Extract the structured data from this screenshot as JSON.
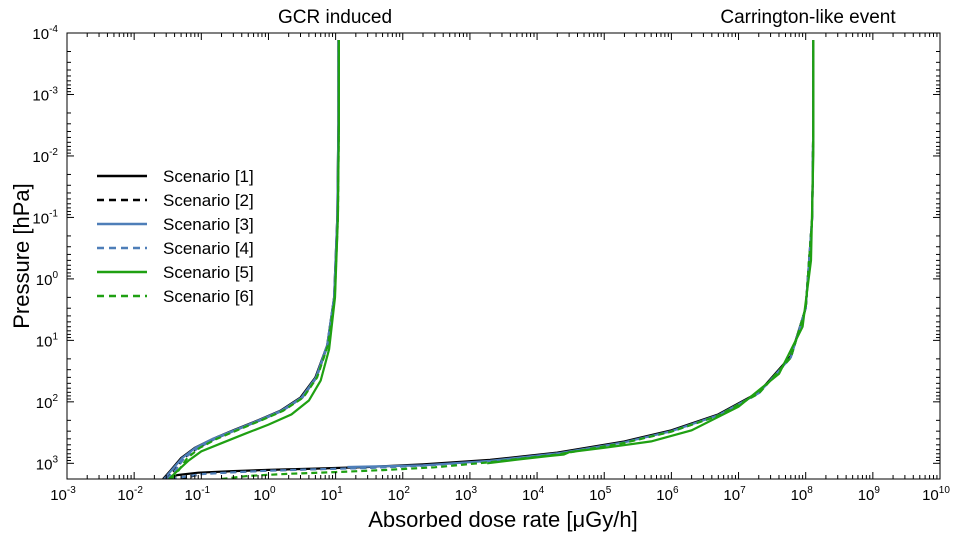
{
  "chart_data": {
    "type": "line",
    "title": "",
    "annotations": [
      "GCR induced",
      "Carrington-like event"
    ],
    "xlabel": "Absorbed dose rate [μGy/h]",
    "ylabel": "Pressure [hPa]",
    "xscale": "log",
    "yscale": "log",
    "yaxis_inverted": true,
    "xlim": [
      0.001,
      10000000000
    ],
    "ylim": [
      1800,
      0.0001
    ],
    "x_ticks": [
      {
        "base": "10",
        "exp": "-3"
      },
      {
        "base": "10",
        "exp": "-2"
      },
      {
        "base": "10",
        "exp": "-1"
      },
      {
        "base": "10",
        "exp": "0"
      },
      {
        "base": "10",
        "exp": "1"
      },
      {
        "base": "10",
        "exp": "2"
      },
      {
        "base": "10",
        "exp": "3"
      },
      {
        "base": "10",
        "exp": "4"
      },
      {
        "base": "10",
        "exp": "5"
      },
      {
        "base": "10",
        "exp": "6"
      },
      {
        "base": "10",
        "exp": "7"
      },
      {
        "base": "10",
        "exp": "8"
      },
      {
        "base": "10",
        "exp": "9"
      },
      {
        "base": "10",
        "exp": "10"
      }
    ],
    "y_ticks": [
      {
        "base": "10",
        "exp": "-4"
      },
      {
        "base": "10",
        "exp": "-3"
      },
      {
        "base": "10",
        "exp": "-2"
      },
      {
        "base": "10",
        "exp": "-1"
      },
      {
        "base": "10",
        "exp": "0"
      },
      {
        "base": "10",
        "exp": "1"
      },
      {
        "base": "10",
        "exp": "2"
      },
      {
        "base": "10",
        "exp": "3"
      }
    ],
    "legend_position": "center-left",
    "grid": false,
    "series": [
      {
        "name": "Scenario [1]",
        "color": "#000000",
        "dash": "solid",
        "curves": [
          [
            [
              0.027,
              1800
            ],
            [
              0.035,
              1300
            ],
            [
              0.05,
              820
            ],
            [
              0.08,
              560
            ],
            [
              0.15,
              400
            ],
            [
              0.3,
              290
            ],
            [
              0.7,
              200
            ],
            [
              1.5,
              140
            ],
            [
              3,
              85
            ],
            [
              5,
              40
            ],
            [
              7.5,
              12
            ],
            [
              9.5,
              2
            ],
            [
              10.6,
              0.1
            ],
            [
              11,
              0.003
            ],
            [
              11,
              0.00013
            ]
          ],
          [
            [
              0.027,
              1800
            ],
            [
              0.045,
              1550
            ],
            [
              0.09,
              1420
            ],
            [
              0.3,
              1340
            ],
            [
              1,
              1280
            ],
            [
              5,
              1220
            ],
            [
              30,
              1150
            ],
            [
              200,
              1040
            ],
            [
              2000,
              880
            ],
            [
              20000,
              670
            ],
            [
              200000,
              440
            ],
            [
              1000000,
              290
            ],
            [
              5000000,
              160
            ],
            [
              20000000,
              70
            ],
            [
              60000000,
              18
            ],
            [
              100000000,
              3
            ],
            [
              125000000,
              0.1
            ],
            [
              130000000,
              0.003
            ],
            [
              130000000,
              0.00013
            ]
          ]
        ]
      },
      {
        "name": "Scenario [2]",
        "color": "#000000",
        "dash": "dashed",
        "curves": [
          [
            [
              0.03,
              1800
            ],
            [
              0.04,
              1300
            ],
            [
              0.055,
              820
            ],
            [
              0.09,
              560
            ],
            [
              0.16,
              400
            ],
            [
              0.32,
              290
            ],
            [
              0.75,
              200
            ],
            [
              1.6,
              140
            ],
            [
              3.2,
              85
            ],
            [
              5.2,
              40
            ],
            [
              7.6,
              12
            ],
            [
              9.6,
              2
            ],
            [
              10.7,
              0.1
            ],
            [
              11.1,
              0.003
            ],
            [
              11.1,
              0.00013
            ]
          ],
          [
            [
              0.05,
              1800
            ],
            [
              0.1,
              1480
            ],
            [
              0.3,
              1390
            ],
            [
              1,
              1310
            ],
            [
              5,
              1240
            ],
            [
              30,
              1180
            ],
            [
              200,
              1080
            ],
            [
              2000,
              900
            ],
            [
              20000,
              680
            ],
            [
              200000,
              450
            ],
            [
              1000000,
              300
            ],
            [
              5000000,
              165
            ],
            [
              20000000,
              72
            ],
            [
              60000000,
              19
            ],
            [
              100000000,
              3
            ],
            [
              125000000,
              0.1
            ],
            [
              130000000,
              0.003
            ],
            [
              130000000,
              0.00013
            ]
          ]
        ]
      },
      {
        "name": "Scenario [3]",
        "color": "#4e7eb8",
        "dash": "solid",
        "curves": [
          [
            [
              0.028,
              1800
            ],
            [
              0.036,
              1300
            ],
            [
              0.052,
              820
            ],
            [
              0.082,
              560
            ],
            [
              0.15,
              400
            ],
            [
              0.31,
              290
            ],
            [
              0.72,
              200
            ],
            [
              1.55,
              140
            ],
            [
              3.1,
              85
            ],
            [
              5.1,
              40
            ],
            [
              7.5,
              12
            ],
            [
              9.5,
              2
            ],
            [
              10.6,
              0.1
            ],
            [
              11,
              0.003
            ],
            [
              11,
              0.00013
            ]
          ],
          [
            [
              15,
              1150
            ],
            [
              200,
              1080
            ],
            [
              2000,
              910
            ],
            [
              20000,
              690
            ],
            [
              200000,
              455
            ],
            [
              1000000,
              300
            ],
            [
              5000000,
              165
            ],
            [
              20000000,
              72
            ],
            [
              60000000,
              19
            ],
            [
              100000000,
              3
            ],
            [
              125000000,
              0.1
            ],
            [
              130000000,
              0.003
            ],
            [
              130000000,
              0.00013
            ]
          ]
        ]
      },
      {
        "name": "Scenario [4]",
        "color": "#4e7eb8",
        "dash": "dashed",
        "curves": [
          [
            [
              0.031,
              1800
            ],
            [
              0.041,
              1300
            ],
            [
              0.056,
              820
            ],
            [
              0.09,
              560
            ],
            [
              0.16,
              400
            ],
            [
              0.32,
              290
            ],
            [
              0.75,
              200
            ],
            [
              1.6,
              140
            ],
            [
              3.2,
              85
            ],
            [
              5.2,
              40
            ],
            [
              7.6,
              12
            ],
            [
              9.6,
              2
            ],
            [
              10.7,
              0.1
            ],
            [
              11.1,
              0.003
            ],
            [
              11.1,
              0.00013
            ]
          ],
          [
            [
              0.035,
              1800
            ],
            [
              0.1,
              1500
            ],
            [
              0.3,
              1400
            ],
            [
              1,
              1320
            ],
            [
              5,
              1250
            ],
            [
              30,
              1190
            ],
            [
              200,
              1090
            ],
            [
              2000,
              920
            ],
            [
              20000,
              700
            ],
            [
              200000,
              460
            ],
            [
              1000000,
              305
            ],
            [
              5000000,
              168
            ],
            [
              20000000,
              73
            ],
            [
              60000000,
              19
            ],
            [
              100000000,
              3
            ],
            [
              125000000,
              0.1
            ],
            [
              130000000,
              0.003
            ],
            [
              130000000,
              0.00013
            ]
          ]
        ]
      },
      {
        "name": "Scenario [5]",
        "color": "#1fa012",
        "dash": "solid",
        "curves": [
          [
            [
              0.033,
              1800
            ],
            [
              0.045,
              1300
            ],
            [
              0.065,
              900
            ],
            [
              0.1,
              640
            ],
            [
              0.2,
              470
            ],
            [
              0.45,
              330
            ],
            [
              1,
              235
            ],
            [
              2.2,
              160
            ],
            [
              4,
              95
            ],
            [
              6,
              45
            ],
            [
              8,
              14
            ],
            [
              9.8,
              2
            ],
            [
              10.8,
              0.1
            ],
            [
              11.2,
              0.003
            ],
            [
              11.2,
              0.00013
            ]
          ],
          [
            [
              1800,
              1000
            ],
            [
              5000,
              870
            ],
            [
              15000,
              760
            ],
            [
              25000,
              720
            ],
            [
              30000,
              660
            ],
            [
              100000,
              560
            ],
            [
              500000,
              440
            ],
            [
              2000000,
              290
            ],
            [
              10000000,
              120
            ],
            [
              40000000,
              35
            ],
            [
              90000000,
              6
            ],
            [
              120000000,
              0.5
            ],
            [
              130000000,
              0.01
            ],
            [
              130000000,
              0.00013
            ]
          ]
        ]
      },
      {
        "name": "Scenario [6]",
        "color": "#1fa012",
        "dash": "dashed",
        "curves": [
          [
            [
              0.036,
              1800
            ],
            [
              0.046,
              1300
            ],
            [
              0.062,
              820
            ],
            [
              0.095,
              560
            ],
            [
              0.17,
              400
            ],
            [
              0.34,
              290
            ],
            [
              0.78,
              200
            ],
            [
              1.65,
              140
            ],
            [
              3.3,
              85
            ],
            [
              5.3,
              40
            ],
            [
              7.7,
              12
            ],
            [
              9.7,
              2
            ],
            [
              10.8,
              0.1
            ],
            [
              11.2,
              0.003
            ],
            [
              11.2,
              0.00013
            ]
          ],
          [
            [
              0.2,
              1800
            ],
            [
              0.5,
              1600
            ],
            [
              2,
              1480
            ],
            [
              10,
              1390
            ],
            [
              50,
              1290
            ],
            [
              300,
              1160
            ],
            [
              2000,
              960
            ],
            [
              20000,
              720
            ],
            [
              200000,
              465
            ],
            [
              1000000,
              305
            ],
            [
              5000000,
              168
            ],
            [
              20000000,
              73
            ],
            [
              60000000,
              19
            ],
            [
              100000000,
              3
            ],
            [
              125000000,
              0.1
            ],
            [
              130000000,
              0.003
            ],
            [
              130000000,
              0.00013
            ]
          ]
        ]
      }
    ]
  }
}
